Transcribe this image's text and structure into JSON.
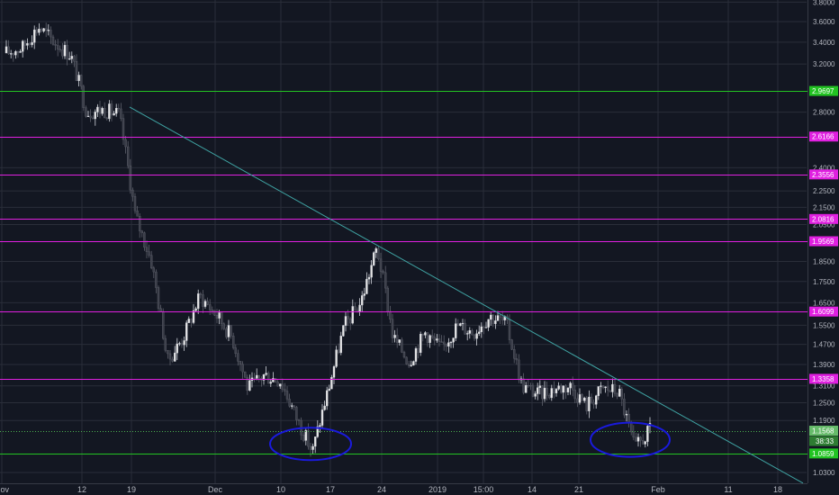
{
  "chart_data": {
    "type": "candlestick",
    "title": "",
    "xlabel": "",
    "ylabel": "",
    "y_scale": "log",
    "ylim": [
      1.0,
      3.8
    ],
    "grid": true,
    "y_ticks": [
      "3.8000",
      "3.6000",
      "3.4000",
      "3.2000",
      "2.9697",
      "2.8000",
      "2.6166",
      "2.4000",
      "2.3556",
      "2.2500",
      "2.1500",
      "2.0816",
      "2.0500",
      "1.9569",
      "1.8500",
      "1.7500",
      "1.6500",
      "1.6099",
      "1.5500",
      "1.4700",
      "1.3900",
      "1.3358",
      "1.3100",
      "1.2500",
      "1.1900",
      "1.1568",
      "1.0859",
      "1.0300"
    ],
    "x_ticks": [
      "Nov",
      "12",
      "19",
      "Dec",
      "10",
      "17",
      "24",
      "2019",
      "15:00",
      "14",
      "21",
      "Feb",
      "11",
      "18"
    ],
    "horizontal_levels": [
      {
        "value": "2.9697",
        "color": "#22c322"
      },
      {
        "value": "2.6166",
        "color": "#e020e0"
      },
      {
        "value": "2.3556",
        "color": "#e020e0"
      },
      {
        "value": "2.0816",
        "color": "#e020e0"
      },
      {
        "value": "1.9569",
        "color": "#e020e0"
      },
      {
        "value": "1.6099",
        "color": "#e020e0"
      },
      {
        "value": "1.3358",
        "color": "#e020e0"
      },
      {
        "value": "1.0859",
        "color": "#22c322"
      }
    ],
    "current_price": {
      "value": "1.1568",
      "color": "#4caf50"
    },
    "countdown": "38:33",
    "trendline": {
      "from": [
        "19",
        2.84
      ],
      "to": [
        "18",
        1.0
      ],
      "color": "#3fa3a3"
    },
    "highlight_ellipses": [
      {
        "center": [
          "13",
          1.115
        ],
        "color": "#1a1adc"
      },
      {
        "center": [
          "27",
          1.128
        ],
        "color": "#1a1adc"
      }
    ],
    "series": [
      {
        "values": [
          {
            "x": "Nov",
            "close": 3.3
          },
          {
            "x": "03",
            "close": 3.35
          },
          {
            "x": "06",
            "close": 3.55
          },
          {
            "x": "09",
            "close": 3.4
          },
          {
            "x": "12",
            "close": 3.28
          },
          {
            "x": "14",
            "close": 2.8
          },
          {
            "x": "17",
            "close": 2.82
          },
          {
            "x": "19",
            "close": 2.78
          },
          {
            "x": "21",
            "close": 2.1
          },
          {
            "x": "23",
            "close": 1.85
          },
          {
            "x": "25",
            "close": 1.4
          },
          {
            "x": "27",
            "close": 1.5
          },
          {
            "x": "29",
            "close": 1.68
          },
          {
            "x": "Dec",
            "close": 1.6
          },
          {
            "x": "03",
            "close": 1.5
          },
          {
            "x": "06",
            "close": 1.3
          },
          {
            "x": "08",
            "close": 1.35
          },
          {
            "x": "10",
            "close": 1.33
          },
          {
            "x": "12",
            "close": 1.2
          },
          {
            "x": "14",
            "close": 1.09
          },
          {
            "x": "17",
            "close": 1.3
          },
          {
            "x": "19",
            "close": 1.55
          },
          {
            "x": "21",
            "close": 1.65
          },
          {
            "x": "24",
            "close": 1.92
          },
          {
            "x": "25",
            "close": 1.5
          },
          {
            "x": "27",
            "close": 1.4
          },
          {
            "x": "29",
            "close": 1.52
          },
          {
            "x": "31",
            "close": 1.45
          },
          {
            "x": "2019",
            "close": 1.55
          },
          {
            "x": "03",
            "close": 1.52
          },
          {
            "x": "15:00",
            "close": 1.59
          },
          {
            "x": "09",
            "close": 1.56
          },
          {
            "x": "11",
            "close": 1.31
          },
          {
            "x": "14",
            "close": 1.28
          },
          {
            "x": "16",
            "close": 1.3
          },
          {
            "x": "19",
            "close": 1.31
          },
          {
            "x": "21",
            "close": 1.24
          },
          {
            "x": "23",
            "close": 1.3
          },
          {
            "x": "25",
            "close": 1.29
          },
          {
            "x": "27",
            "close": 1.1
          },
          {
            "x": "29",
            "close": 1.16
          }
        ]
      }
    ]
  }
}
